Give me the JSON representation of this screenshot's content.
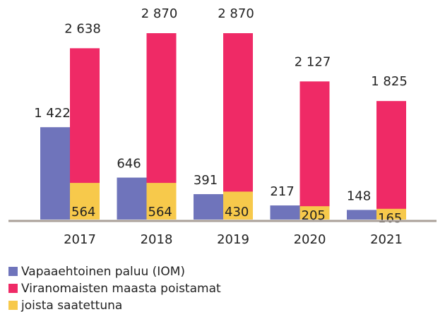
{
  "chart_data": {
    "type": "bar",
    "categories": [
      "2017",
      "2018",
      "2019",
      "2020",
      "2021"
    ],
    "series": [
      {
        "name": "Vapaaehtoinen paluu (IOM)",
        "color": "#6f74bb",
        "values": [
          1422,
          646,
          391,
          217,
          148
        ],
        "value_labels": [
          "1 422",
          "646",
          "391",
          "217",
          "148"
        ]
      },
      {
        "name": "Viranomaisten maasta poistamat",
        "color": "#ef2a66",
        "values": [
          2638,
          2870,
          2870,
          2127,
          1825
        ],
        "value_labels": [
          "2 638",
          "2 870",
          "2 870",
          "2 127",
          "1 825"
        ]
      },
      {
        "name": "joista saatettuna",
        "color": "#f7c94b",
        "values": [
          564,
          564,
          430,
          205,
          165
        ]
      }
    ],
    "ylim": [
      0,
      2870
    ],
    "grid": false
  }
}
